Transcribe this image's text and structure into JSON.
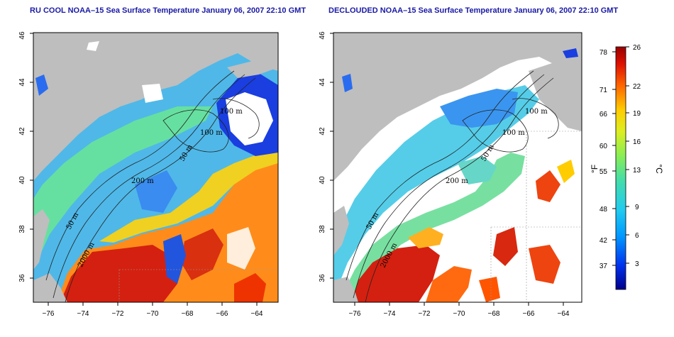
{
  "titles": {
    "left": "RU COOL NOAA–15 Sea Surface Temperature January 06, 2007 22:10 GMT",
    "right": "DECLOUDED NOAA–15 Sea Surface Temperature January 06, 2007 22:10 GMT"
  },
  "axes": {
    "lon_ticks": [
      "−76",
      "−74",
      "−72",
      "−70",
      "−68",
      "−66",
      "−64"
    ],
    "lat_ticks": [
      "36",
      "38",
      "40",
      "42",
      "44",
      "46"
    ]
  },
  "contour_labels": {
    "left": [
      "100 m",
      "100 m",
      "50 m",
      "200 m",
      "50 m",
      "2000 m"
    ],
    "right": [
      "100 m",
      "100 m",
      "50 m",
      "200 m",
      "50 m",
      "2000 m"
    ]
  },
  "colorbar": {
    "fahrenheit_ticks": [
      "78",
      "71",
      "66",
      "60",
      "55",
      "48",
      "42",
      "37"
    ],
    "celsius_ticks": [
      "26",
      "22",
      "19",
      "16",
      "13",
      "9",
      "6",
      "3"
    ],
    "unit_f": "°F",
    "unit_c": "°C"
  },
  "colors": {
    "land": "#bebebe",
    "cloud": "#ffffff",
    "title": "#1a1aa6",
    "scale": [
      "#00008b",
      "#0044ff",
      "#00aaff",
      "#33ddcc",
      "#66ee66",
      "#ccee22",
      "#ffdd00",
      "#ff8800",
      "#ee2200",
      "#990000"
    ]
  }
}
